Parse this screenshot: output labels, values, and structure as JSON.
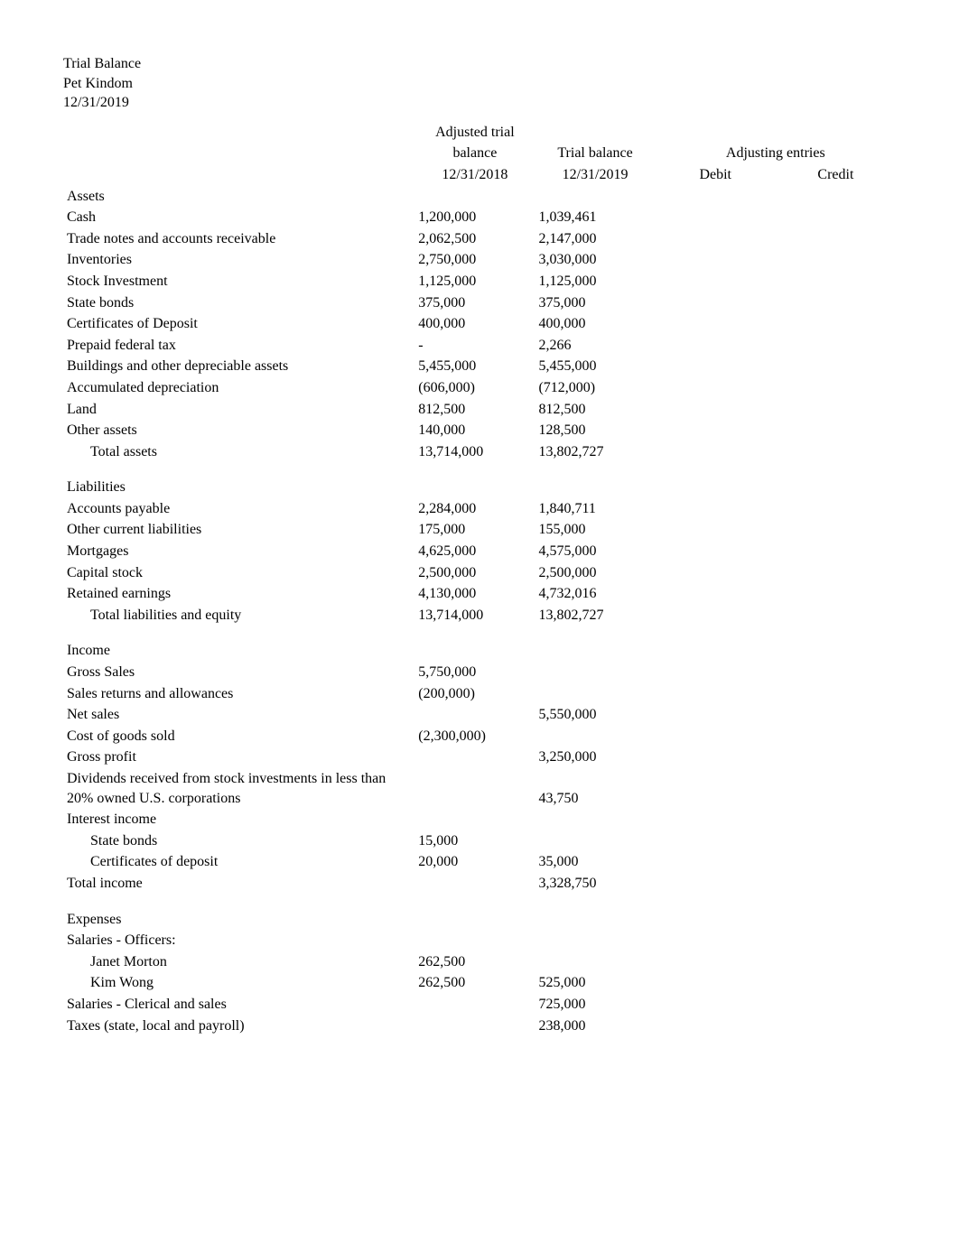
{
  "header": {
    "title": "Trial Balance",
    "company": "Pet Kindom",
    "date": "12/31/2019"
  },
  "columns": {
    "col1_line1": "Adjusted trial",
    "col1_line2": "balance",
    "col1_line3": "12/31/2018",
    "col2_line2": "Trial balance",
    "col2_line3": "12/31/2019",
    "col34_line2": "Adjusting entries",
    "col3_line3": "Debit",
    "col4_line3": "Credit"
  },
  "sections": {
    "assets": {
      "heading": "Assets",
      "rows": [
        {
          "label": "Cash",
          "c1": "1,200,000",
          "c2": "1,039,461"
        },
        {
          "label": "Trade notes and accounts receivable",
          "c1": "2,062,500",
          "c2": "2,147,000"
        },
        {
          "label": "Inventories",
          "c1": "2,750,000",
          "c2": "3,030,000"
        },
        {
          "label": "Stock Investment",
          "c1": "1,125,000",
          "c2": "1,125,000"
        },
        {
          "label": "State bonds",
          "c1": "375,000",
          "c2": "375,000"
        },
        {
          "label": "Certificates of Deposit",
          "c1": "400,000",
          "c2": "400,000"
        },
        {
          "label": "Prepaid federal tax",
          "c1": "-",
          "c2": "2,266"
        },
        {
          "label": "Buildings and other depreciable assets",
          "c1": "5,455,000",
          "c2": "5,455,000"
        },
        {
          "label": "Accumulated depreciation",
          "c1": "(606,000)",
          "c2": "(712,000)"
        },
        {
          "label": "Land",
          "c1": "812,500",
          "c2": "812,500"
        },
        {
          "label": "Other assets",
          "c1": "140,000",
          "c2": "128,500"
        }
      ],
      "total": {
        "label": "Total assets",
        "c1": "13,714,000",
        "c2": "13,802,727"
      }
    },
    "liabilities": {
      "heading": "Liabilities",
      "rows": [
        {
          "label": "Accounts payable",
          "c1": "2,284,000",
          "c2": "1,840,711"
        },
        {
          "label": "Other current liabilities",
          "c1": "175,000",
          "c2": "155,000"
        },
        {
          "label": "Mortgages",
          "c1": "4,625,000",
          "c2": "4,575,000"
        },
        {
          "label": "Capital stock",
          "c1": "2,500,000",
          "c2": "2,500,000"
        },
        {
          "label": "Retained earnings",
          "c1": "4,130,000",
          "c2": "4,732,016"
        }
      ],
      "total": {
        "label": "Total liabilities and equity",
        "c1": "13,714,000",
        "c2": "13,802,727"
      }
    },
    "income": {
      "heading": "Income",
      "rows": [
        {
          "label": "Gross Sales",
          "c1": "5,750,000",
          "c2": ""
        },
        {
          "label": "Sales returns and allowances",
          "c1": "(200,000)",
          "c2": ""
        },
        {
          "label": "Net sales",
          "c1": "",
          "c2": "5,550,000"
        },
        {
          "label": "Cost of goods sold",
          "c1": "(2,300,000)",
          "c2": ""
        },
        {
          "label": "Gross profit",
          "c1": "",
          "c2": "3,250,000"
        },
        {
          "label": "Dividends received from stock investments in less than 20% owned U.S. corporations",
          "c1": "",
          "c2": "43,750"
        },
        {
          "label": "Interest income",
          "c1": "",
          "c2": ""
        }
      ],
      "sub": [
        {
          "label": "State bonds",
          "c1": "15,000",
          "c2": ""
        },
        {
          "label": "Certificates of deposit",
          "c1": "20,000",
          "c2": "35,000"
        }
      ],
      "total": {
        "label": "Total income",
        "c1": "",
        "c2": "3,328,750"
      }
    },
    "expenses": {
      "heading": "Expenses",
      "sub_heading": "Salaries - Officers:",
      "officers": [
        {
          "label": "Janet Morton",
          "c1": "262,500",
          "c2": ""
        },
        {
          "label": "Kim Wong",
          "c1": "262,500",
          "c2": "525,000"
        }
      ],
      "rows": [
        {
          "label": "Salaries - Clerical and sales",
          "c1": "",
          "c2": "725,000"
        },
        {
          "label": "Taxes (state, local and payroll)",
          "c1": "",
          "c2": "238,000"
        }
      ]
    }
  }
}
